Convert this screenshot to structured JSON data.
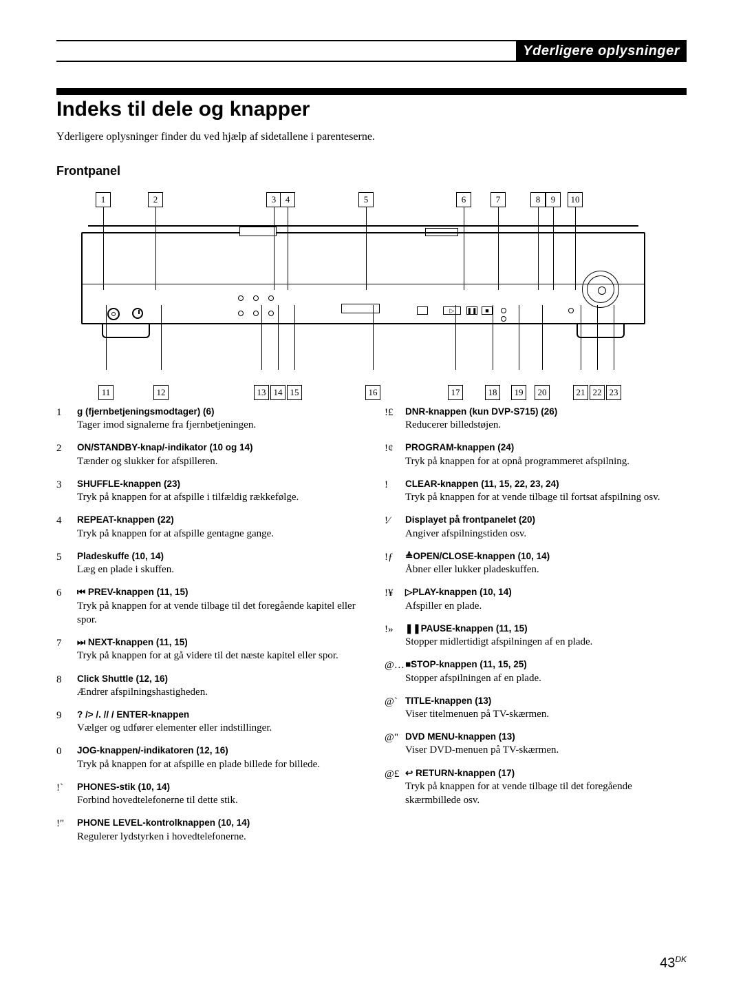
{
  "header_tab": "Yderligere oplysninger",
  "title": "Indeks til dele og knapper",
  "intro": "Yderligere oplysninger finder du ved hjælp af sidetallene i parenteserne.",
  "subhead": "Frontpanel",
  "page_number": "43",
  "page_suffix": "DK",
  "diagram": {
    "top_positions": [
      32,
      108,
      280,
      300,
      414,
      556,
      606,
      664,
      686,
      718
    ],
    "bottom_positions": [
      36,
      116,
      262,
      286,
      310,
      424,
      544,
      598,
      636,
      670,
      726,
      750,
      774
    ],
    "top_labels": [
      "1",
      "2",
      "3",
      "4",
      "5",
      "6",
      "7",
      "8",
      "9",
      "10"
    ],
    "bottom_labels": [
      "11",
      "12",
      "13",
      "14",
      "15",
      "16",
      "17",
      "18",
      "19",
      "20",
      "21",
      "22",
      "23"
    ]
  },
  "colors": {
    "text": "#000000",
    "bg": "#ffffff"
  },
  "left_items": [
    {
      "n": "1",
      "sym": "g",
      "label": " (fjernbetjeningsmodtager) (6)",
      "desc": "Tager imod signalerne fra fjernbetjeningen."
    },
    {
      "n": "2",
      "sym": "",
      "label": "ON/STANDBY-knap/-indikator (10 og 14)",
      "desc": "Tænder og slukker for afspilleren."
    },
    {
      "n": "3",
      "sym": "",
      "label": "SHUFFLE-knappen (23)",
      "desc": "Tryk på knappen for at afspille i tilfældig rækkefølge."
    },
    {
      "n": "4",
      "sym": "",
      "label": "REPEAT-knappen (22)",
      "desc": "Tryk på knappen for at afspille gentagne gange."
    },
    {
      "n": "5",
      "sym": "",
      "label": "Pladeskuffe (10, 14)",
      "desc": "Læg en plade i skuffen."
    },
    {
      "n": "6",
      "sym": "⏮",
      "label": " PREV-knappen (11, 15)",
      "desc": "Tryk på knappen for at vende tilbage til det foregående kapitel eller spor."
    },
    {
      "n": "7",
      "sym": "⏭",
      "label": " NEXT-knappen (11, 15)",
      "desc": "Tryk på knappen for at gå videre til det næste kapitel eller spor."
    },
    {
      "n": "8",
      "sym": "",
      "label": "Click Shuttle (12, 16)",
      "desc": "Ændrer afspilningshastigheden."
    },
    {
      "n": "9",
      "sym": "?  /> /.  //   /",
      "label": " ENTER-knappen",
      "desc": "Vælger og udfører elementer eller indstillinger."
    },
    {
      "n": "0",
      "sym": "",
      "label": "JOG-knappen/-indikatoren (12, 16)",
      "desc": "Tryk på knappen for at afspille en plade billede for billede."
    },
    {
      "n": "!`",
      "sym": "",
      "label": "PHONES-stik (10, 14)",
      "desc": "Forbind hovedtelefonerne til dette stik."
    },
    {
      "n": "!\"",
      "sym": "",
      "label": "PHONE LEVEL-kontrolknappen (10, 14)",
      "desc": "Regulerer lydstyrken i hovedtelefonerne."
    }
  ],
  "right_items": [
    {
      "n": "!£",
      "sym": "",
      "label": "DNR-knappen (kun DVP-S715) (26)",
      "desc": "Reducerer billedstøjen."
    },
    {
      "n": "!¢",
      "sym": "",
      "label": "PROGRAM-knappen (24)",
      "desc": "Tryk på knappen for at opnå programmeret afspilning."
    },
    {
      "n": "!",
      "sym": "",
      "label": "CLEAR-knappen (11, 15, 22, 23, 24)",
      "desc": "Tryk på knappen for at vende tilbage til fortsat afspilning osv."
    },
    {
      "n": "!⁄",
      "sym": "",
      "label": "Displayet på frontpanelet (20)",
      "desc": "Angiver afspilningstiden osv."
    },
    {
      "n": "!ƒ",
      "sym": "≜",
      "label": "OPEN/CLOSE-knappen (10, 14)",
      "desc": "Åbner eller lukker pladeskuffen."
    },
    {
      "n": "!¥",
      "sym": "▷",
      "label": "PLAY-knappen (10, 14)",
      "desc": "Afspiller en plade."
    },
    {
      "n": "!»",
      "sym": "❚❚",
      "label": "PAUSE-knappen (11, 15)",
      "desc": "Stopper midlertidigt afspilningen af en plade."
    },
    {
      "n": "@…",
      "sym": "■",
      "label": "STOP-knappen (11, 15, 25)",
      "desc": "Stopper afspilningen af en plade."
    },
    {
      "n": "@`",
      "sym": "",
      "label": "TITLE-knappen (13)",
      "desc": "Viser titelmenuen på TV-skærmen."
    },
    {
      "n": "@\"",
      "sym": "",
      "label": "DVD MENU-knappen (13)",
      "desc": "Viser DVD-menuen på TV-skærmen."
    },
    {
      "n": "@£",
      "sym": "↩",
      "label": " RETURN-knappen (17)",
      "desc": "Tryk på knappen for at vende tilbage til det foregående skærmbillede osv."
    }
  ]
}
